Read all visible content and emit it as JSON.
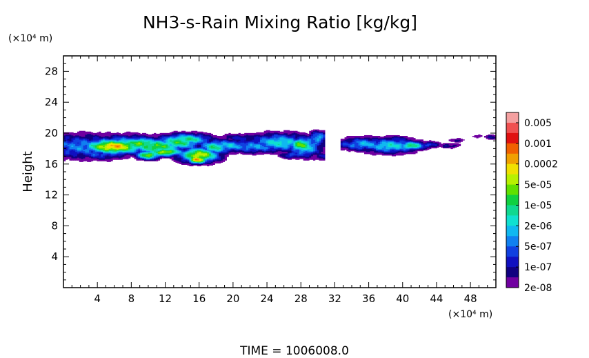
{
  "chart_data": {
    "type": "heatmap",
    "title": "NH3-s-Rain Mixing Ratio [kg/kg]",
    "ylabel": "Height",
    "yunit": "(×10⁴ m)",
    "xunit": "(×10⁴ m)",
    "xlim": [
      0,
      51
    ],
    "ylim": [
      0,
      30
    ],
    "xticks": [
      4,
      8,
      12,
      16,
      20,
      24,
      28,
      32,
      36,
      40,
      44,
      48
    ],
    "yticks": [
      4,
      8,
      12,
      16,
      20,
      24,
      28
    ],
    "footer": "TIME =  1006008.0",
    "colorbar": {
      "labels": [
        "0.005",
        "0.001",
        "0.0002",
        "5e-05",
        "1e-05",
        "2e-06",
        "5e-07",
        "1e-07",
        "2e-08"
      ],
      "colors": [
        "#f4a0a0",
        "#f05050",
        "#e01010",
        "#f06000",
        "#f0a000",
        "#f0e000",
        "#b8f000",
        "#60e000",
        "#10d040",
        "#10d890",
        "#10e0d0",
        "#10b8f0",
        "#1080f0",
        "#1040e0",
        "#1010c0",
        "#100080",
        "#7000a0"
      ]
    },
    "field": {
      "levels": [
        "0.005",
        "0.001",
        "0.0002",
        "5e-05",
        "1e-05",
        "2e-06",
        "5e-07",
        "1e-07",
        "2e-08"
      ],
      "regions": [
        {
          "x": 6,
          "y": 18.2,
          "level": "0.001"
        },
        {
          "x": 15.8,
          "y": 17.2,
          "level": "0.001"
        },
        {
          "x": 12,
          "y": 17.6,
          "level": "0.001"
        },
        {
          "x": 28,
          "y": 18.5,
          "level": "5e-05"
        },
        {
          "x": 40.5,
          "y": 18.5,
          "level": "1e-05"
        }
      ]
    }
  }
}
